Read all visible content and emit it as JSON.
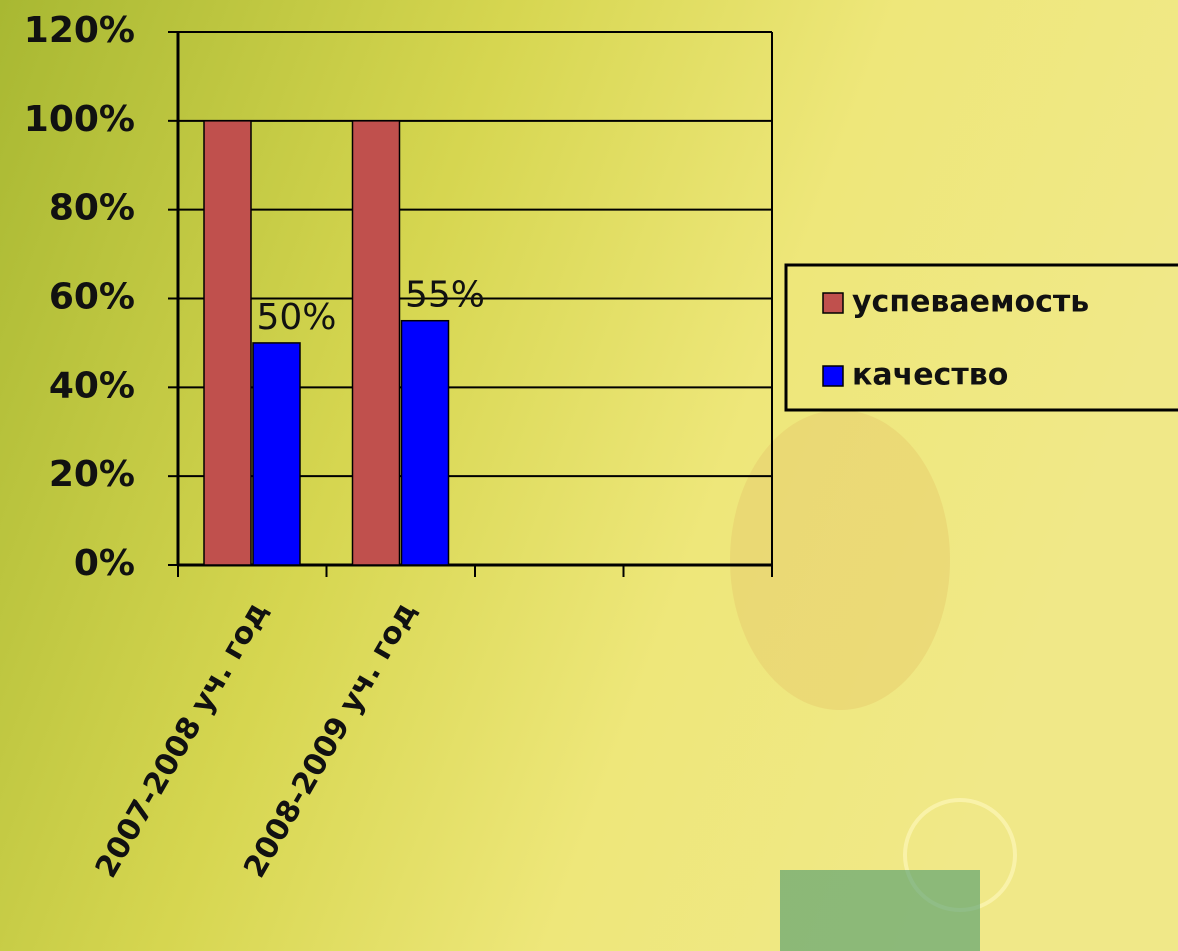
{
  "chart_data": {
    "type": "bar",
    "categories": [
      "2007-2008 уч. год",
      "2008-2009 уч. год",
      null,
      null
    ],
    "series": [
      {
        "name": "успеваемость",
        "color": "#c0504d",
        "values": [
          100,
          100,
          null,
          null
        ]
      },
      {
        "name": "качество",
        "color": "#0000ff",
        "values": [
          50,
          55,
          null,
          null
        ],
        "value_labels": [
          "50%",
          "55%",
          null,
          null
        ]
      }
    ],
    "ylim": [
      0,
      120
    ],
    "yticks": [
      {
        "value": 0,
        "label": "0%"
      },
      {
        "value": 20,
        "label": "20%"
      },
      {
        "value": 40,
        "label": "40%"
      },
      {
        "value": 60,
        "label": "60%"
      },
      {
        "value": 80,
        "label": "80%"
      },
      {
        "value": 100,
        "label": "100%"
      },
      {
        "value": 120,
        "label": "120%"
      }
    ],
    "grid": true,
    "legend": "right"
  }
}
